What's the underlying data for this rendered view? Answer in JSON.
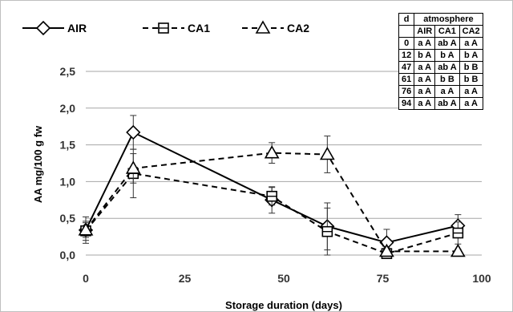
{
  "chart_data": {
    "type": "line",
    "xlabel": "Storage duration (days)",
    "ylabel": "AA mg/100 g fw",
    "xlim": [
      0,
      100
    ],
    "ylim": [
      0,
      2.5
    ],
    "xticks": [
      "0",
      "25",
      "50",
      "75",
      "100"
    ],
    "yticks": [
      "0,0",
      "0,5",
      "1,0",
      "1,5",
      "2,0",
      "2,5"
    ],
    "grid": "horizontal",
    "legend": "top-left",
    "series": [
      {
        "name": "AIR",
        "marker": "diamond",
        "dash": "solid",
        "x": [
          0,
          12,
          47,
          61,
          76,
          94
        ],
        "y": [
          0.34,
          1.67,
          0.75,
          0.39,
          0.17,
          0.4
        ],
        "err": [
          0.18,
          0.23,
          0.18,
          0.32,
          0.18,
          0.15
        ]
      },
      {
        "name": "CA1",
        "marker": "square",
        "dash": "dashed",
        "x": [
          0,
          12,
          47,
          61,
          76,
          94
        ],
        "y": [
          0.33,
          1.11,
          0.8,
          0.32,
          0.02,
          0.3
        ],
        "err": [
          0.13,
          0.33,
          0.12,
          0.32,
          0.05,
          0.15
        ]
      },
      {
        "name": "CA2",
        "marker": "triangle",
        "dash": "dashed",
        "x": [
          0,
          12,
          47,
          61,
          76,
          94
        ],
        "y": [
          0.34,
          1.18,
          1.39,
          1.37,
          0.05,
          0.05
        ],
        "err": [
          0.1,
          0.2,
          0.14,
          0.25,
          0.05,
          0.03
        ]
      }
    ],
    "table": {
      "header": {
        "day": "d",
        "group": "atmosphere"
      },
      "columns": [
        "AIR",
        "CA1",
        "CA2"
      ],
      "rows": [
        {
          "day": "0",
          "values": [
            "a A",
            "ab A",
            "a A"
          ]
        },
        {
          "day": "12",
          "values": [
            "b A",
            "b A",
            "b A"
          ]
        },
        {
          "day": "47",
          "values": [
            "a A",
            "ab A",
            "b B"
          ]
        },
        {
          "day": "61",
          "values": [
            "a A",
            "b B",
            "b B"
          ]
        },
        {
          "day": "76",
          "values": [
            "a A",
            "a A",
            "a A"
          ]
        },
        {
          "day": "94",
          "values": [
            "a A",
            "ab A",
            "a A"
          ]
        }
      ]
    }
  }
}
